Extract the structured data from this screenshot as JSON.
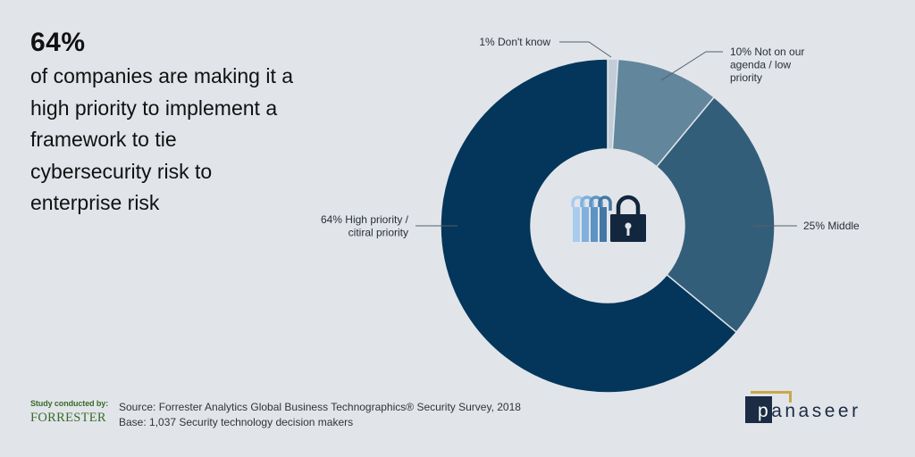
{
  "headline": {
    "stat": "64%",
    "text": "of companies are making it a high priority to implement a framework to tie cybersecurity risk to enterprise risk"
  },
  "chart_data": {
    "type": "pie",
    "donut": true,
    "title": "",
    "slices": [
      {
        "label": "1% Don't know",
        "value": 1,
        "color": "#c2cdd7"
      },
      {
        "label": "10% Not on our agenda / low priority",
        "value": 10,
        "color": "#62869c"
      },
      {
        "label": "25% Middle",
        "value": 25,
        "color": "#335e7a"
      },
      {
        "label": "64% High priority / citiral priority",
        "value": 64,
        "color": "#03365a"
      }
    ],
    "center_icon": "padlock-icon"
  },
  "footer": {
    "study_label": "Study conducted by:",
    "study_by": "FORRESTER",
    "source": "Source: Forrester Analytics Global Business Technographics® Security Survey, 2018",
    "base": "Base: 1,037 Security technology decision makers"
  },
  "brand": {
    "name": "panaseer"
  }
}
